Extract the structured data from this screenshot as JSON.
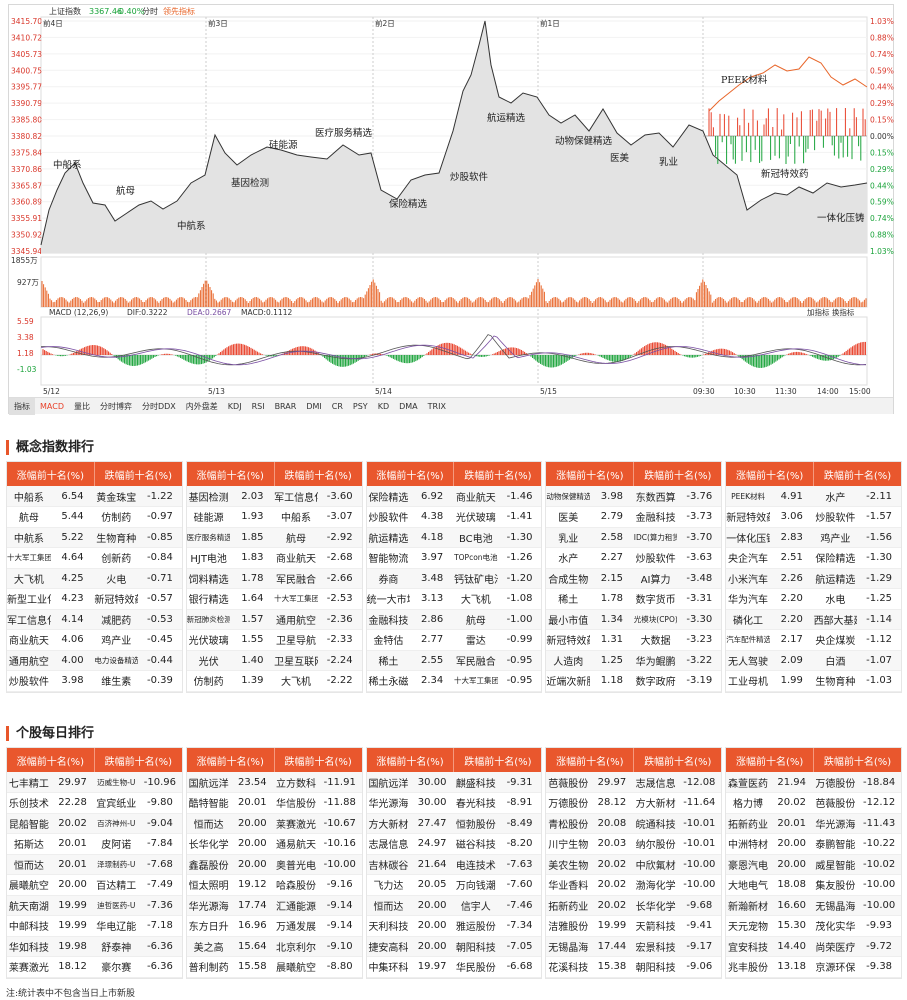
{
  "chart": {
    "index_label": "上证指数",
    "index_value": "3367.46",
    "index_change": "-0.40%",
    "mode_label": "分时",
    "leader_label": "领先指标",
    "y_ticks": [
      "3415.70",
      "3410.72",
      "3405.73",
      "3400.75",
      "3395.77",
      "3390.79",
      "3385.80",
      "3380.82",
      "3375.84",
      "3370.86",
      "3365.87",
      "3360.89",
      "3355.91",
      "3350.92",
      "3345.94"
    ],
    "pct_ticks": [
      "1.03%",
      "0.88%",
      "0.74%",
      "0.59%",
      "0.44%",
      "0.29%",
      "0.15%",
      "0.00%",
      "0.15%",
      "0.29%",
      "0.44%",
      "0.59%",
      "0.74%",
      "0.88%",
      "1.03%"
    ],
    "day_labels": [
      "前4日",
      "前3日",
      "前2日",
      "前1日"
    ],
    "vol_ticks": [
      "1855万",
      "927万"
    ],
    "macd_label": "MACD (12,26,9)",
    "dif_label": "DIF:0.3222",
    "dea_label": "DEA:0.2667",
    "macd_value_label": "MACD:0.1112",
    "macd_controls": "加指标 换指标",
    "macd_ticks": [
      "5.59",
      "3.38",
      "1.18",
      "-1.03"
    ],
    "x_labels": [
      "5/12",
      "5/13",
      "5/14",
      "5/15",
      "09:30",
      "10:30",
      "11:30",
      "14:00",
      "15:00"
    ],
    "annotations": [
      "中船系",
      "航母",
      "中航系",
      "基因检测",
      "硅能源",
      "医疗服务精选",
      "保险精选",
      "炒股软件",
      "航运精选",
      "动物保健精选",
      "医美",
      "乳业",
      "PEEK材料",
      "新冠特效药",
      "一体化压铸"
    ],
    "tabs": [
      "指标",
      "MACD",
      "量比",
      "分时博弈",
      "分时DDX",
      "内外盘差",
      "KDJ",
      "RSI",
      "BRAR",
      "DMI",
      "CR",
      "PSY",
      "KD",
      "DMA",
      "TRIX"
    ],
    "colors": {
      "up": "#e8412a",
      "down": "#1aa33a",
      "line": "#333333",
      "fill": "#d9d9d9",
      "orange": "#e8662a",
      "purple": "#7a4fa3"
    }
  },
  "concept_title": "概念指数排行",
  "stock_title": "个股每日排行",
  "header_up": "涨幅前十名(%)",
  "header_down": "跌幅前十名(%)",
  "concept_blocks": [
    [
      [
        "中船系",
        "6.54",
        "黄金珠宝",
        "-1.22"
      ],
      [
        "航母",
        "5.44",
        "仿制药",
        "-0.97"
      ],
      [
        "中航系",
        "5.22",
        "生物育种",
        "-0.85"
      ],
      [
        "十大军工集团",
        "4.64",
        "创新药",
        "-0.84"
      ],
      [
        "大飞机",
        "4.25",
        "火电",
        "-0.71"
      ],
      [
        "新型工业化",
        "4.23",
        "新冠特效药",
        "-0.57"
      ],
      [
        "军工信息化",
        "4.14",
        "减肥药",
        "-0.53"
      ],
      [
        "商业航天",
        "4.06",
        "鸡产业",
        "-0.45"
      ],
      [
        "通用航空",
        "4.00",
        "电力设备精选",
        "-0.44"
      ],
      [
        "炒股软件",
        "3.98",
        "维生素",
        "-0.39"
      ]
    ],
    [
      [
        "基因检测",
        "2.03",
        "军工信息化",
        "-3.60"
      ],
      [
        "硅能源",
        "1.93",
        "中船系",
        "-3.07"
      ],
      [
        "医疗服务精选",
        "1.85",
        "航母",
        "-2.92"
      ],
      [
        "HJT电池",
        "1.83",
        "商业航天",
        "-2.68"
      ],
      [
        "饲料精选",
        "1.78",
        "军民融合",
        "-2.66"
      ],
      [
        "银行精选",
        "1.64",
        "十大军工集团",
        "-2.53"
      ],
      [
        "新冠肺炎检测",
        "1.57",
        "通用航空",
        "-2.36"
      ],
      [
        "光伏玻璃",
        "1.55",
        "卫星导航",
        "-2.33"
      ],
      [
        "光伏",
        "1.40",
        "卫星互联网",
        "-2.24"
      ],
      [
        "仿制药",
        "1.39",
        "大飞机",
        "-2.22"
      ]
    ],
    [
      [
        "保险精选",
        "6.92",
        "商业航天",
        "-1.46"
      ],
      [
        "炒股软件",
        "4.38",
        "光伏玻璃",
        "-1.41"
      ],
      [
        "航运精选",
        "4.18",
        "BC电池",
        "-1.30"
      ],
      [
        "智能物流",
        "3.97",
        "TOPcon电池",
        "-1.26"
      ],
      [
        "券商",
        "3.48",
        "钙钛矿电池",
        "-1.20"
      ],
      [
        "统一大市场",
        "3.13",
        "大飞机",
        "-1.08"
      ],
      [
        "金融科技",
        "2.86",
        "航母",
        "-1.00"
      ],
      [
        "金特估",
        "2.77",
        "雷达",
        "-0.99"
      ],
      [
        "稀土",
        "2.55",
        "军民融合",
        "-0.95"
      ],
      [
        "稀土永磁",
        "2.34",
        "十大军工集团",
        "-0.95"
      ]
    ],
    [
      [
        "动物保健精选",
        "3.98",
        "东数西算",
        "-3.76"
      ],
      [
        "医美",
        "2.79",
        "金融科技",
        "-3.73"
      ],
      [
        "乳业",
        "2.58",
        "IDC(算力租赁)",
        "-3.70"
      ],
      [
        "水产",
        "2.27",
        "炒股软件",
        "-3.63"
      ],
      [
        "合成生物",
        "2.15",
        "AI算力",
        "-3.48"
      ],
      [
        "稀土",
        "1.78",
        "数字货币",
        "-3.31"
      ],
      [
        "最小市值",
        "1.34",
        "光模块(CPO)",
        "-3.30"
      ],
      [
        "新冠特效药",
        "1.31",
        "大数据",
        "-3.23"
      ],
      [
        "人造肉",
        "1.25",
        "华为鲲鹏",
        "-3.22"
      ],
      [
        "近端次新股",
        "1.18",
        "数字政府",
        "-3.19"
      ]
    ],
    [
      [
        "PEEK材料",
        "4.91",
        "水产",
        "-2.11"
      ],
      [
        "新冠特效药",
        "3.06",
        "炒股软件",
        "-1.57"
      ],
      [
        "一体化压铸",
        "2.83",
        "鸡产业",
        "-1.56"
      ],
      [
        "央企汽车",
        "2.51",
        "保险精选",
        "-1.30"
      ],
      [
        "小米汽车",
        "2.26",
        "航运精选",
        "-1.29"
      ],
      [
        "华为汽车",
        "2.20",
        "水电",
        "-1.25"
      ],
      [
        "磷化工",
        "2.20",
        "西部大基建",
        "-1.14"
      ],
      [
        "汽车配件精选",
        "2.17",
        "央企煤炭",
        "-1.12"
      ],
      [
        "无人驾驶",
        "2.09",
        "白酒",
        "-1.07"
      ],
      [
        "工业母机",
        "1.99",
        "生物育种",
        "-1.03"
      ]
    ]
  ],
  "stock_blocks": [
    [
      [
        "七丰精工",
        "29.97",
        "迈威生物-U",
        "-10.96"
      ],
      [
        "乐创技术",
        "22.28",
        "宜宾纸业",
        "-9.80"
      ],
      [
        "昆船智能",
        "20.02",
        "百济神州-U",
        "-9.04"
      ],
      [
        "拓斯达",
        "20.01",
        "皮阿诺",
        "-7.84"
      ],
      [
        "恒而达",
        "20.01",
        "泽璟制药-U",
        "-7.68"
      ],
      [
        "晨曦航空",
        "20.00",
        "百达精工",
        "-7.49"
      ],
      [
        "航天南湖",
        "19.99",
        "迪哲医药-U",
        "-7.36"
      ],
      [
        "中邮科技",
        "19.99",
        "华电辽能",
        "-7.18"
      ],
      [
        "华如科技",
        "19.98",
        "舒泰神",
        "-6.36"
      ],
      [
        "莱赛激光",
        "18.12",
        "豪尔赛",
        "-6.36"
      ]
    ],
    [
      [
        "国航远洋",
        "23.54",
        "立方数科",
        "-11.91"
      ],
      [
        "酷特智能",
        "20.01",
        "华信股份",
        "-11.88"
      ],
      [
        "恒而达",
        "20.00",
        "莱赛激光",
        "-10.67"
      ],
      [
        "长华化学",
        "20.00",
        "通易航天",
        "-10.16"
      ],
      [
        "鑫磊股份",
        "20.00",
        "奥普光电",
        "-10.00"
      ],
      [
        "恒太照明",
        "19.12",
        "哈森股份",
        "-9.16"
      ],
      [
        "华光源海",
        "17.74",
        "汇通能源",
        "-9.14"
      ],
      [
        "东方日升",
        "16.96",
        "万通发展",
        "-9.14"
      ],
      [
        "美之高",
        "15.64",
        "北京利尔",
        "-9.10"
      ],
      [
        "普利制药",
        "15.58",
        "晨曦航空",
        "-8.80"
      ]
    ],
    [
      [
        "国航远洋",
        "30.00",
        "麒盛科技",
        "-9.31"
      ],
      [
        "华光源海",
        "30.00",
        "春光科技",
        "-8.91"
      ],
      [
        "方大新材",
        "27.47",
        "恒勃股份",
        "-8.49"
      ],
      [
        "志晟信息",
        "24.97",
        "磁谷科技",
        "-8.20"
      ],
      [
        "吉林碳谷",
        "21.64",
        "电连技术",
        "-7.63"
      ],
      [
        "飞力达",
        "20.05",
        "万向钱潮",
        "-7.60"
      ],
      [
        "恒而达",
        "20.00",
        "信宇人",
        "-7.46"
      ],
      [
        "天利科技",
        "20.00",
        "雅运股份",
        "-7.34"
      ],
      [
        "捷安高科",
        "20.00",
        "朝阳科技",
        "-7.05"
      ],
      [
        "中集环科",
        "19.97",
        "华民股份",
        "-6.68"
      ]
    ],
    [
      [
        "芭薇股份",
        "29.97",
        "志晟信息",
        "-12.08"
      ],
      [
        "万德股份",
        "28.12",
        "方大新材",
        "-11.64"
      ],
      [
        "青松股份",
        "20.08",
        "皖通科技",
        "-10.01"
      ],
      [
        "川宁生物",
        "20.03",
        "纳尔股份",
        "-10.01"
      ],
      [
        "美农生物",
        "20.02",
        "中欣氟材",
        "-10.00"
      ],
      [
        "华业香料",
        "20.02",
        "渤海化学",
        "-10.00"
      ],
      [
        "拓新药业",
        "20.02",
        "长华化学",
        "-9.68"
      ],
      [
        "洁雅股份",
        "19.99",
        "天箭科技",
        "-9.41"
      ],
      [
        "无锡晶海",
        "17.44",
        "宏景科技",
        "-9.17"
      ],
      [
        "花溪科技",
        "15.38",
        "朝阳科技",
        "-9.06"
      ]
    ],
    [
      [
        "森萱医药",
        "21.94",
        "万德股份",
        "-18.84"
      ],
      [
        "格力博",
        "20.02",
        "芭薇股份",
        "-12.12"
      ],
      [
        "拓新药业",
        "20.01",
        "华光源海",
        "-11.43"
      ],
      [
        "中洲特材",
        "20.00",
        "泰鹏智能",
        "-10.22"
      ],
      [
        "豪恩汽电",
        "20.00",
        "威星智能",
        "-10.02"
      ],
      [
        "大地电气",
        "18.08",
        "集友股份",
        "-10.00"
      ],
      [
        "新瀚新材",
        "16.60",
        "无锡晶海",
        "-10.00"
      ],
      [
        "天元宠物",
        "15.30",
        "茂化实华",
        "-9.93"
      ],
      [
        "宜安科技",
        "14.40",
        "尚荣医疗",
        "-9.72"
      ],
      [
        "兆丰股份",
        "13.18",
        "京源环保",
        "-9.38"
      ]
    ]
  ],
  "note": "注:统计表中不包含当日上市新股"
}
